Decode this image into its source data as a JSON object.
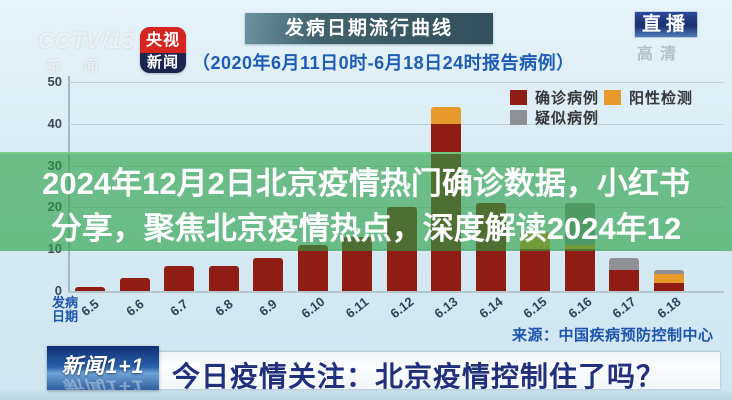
{
  "header": {
    "channel_watermark_line1": "CCTV/13",
    "channel_watermark_line2": "新 闻",
    "app_logo": {
      "line1": "央视",
      "line2": "新闻"
    },
    "title": "发病日期流行曲线",
    "subtitle": "（2020年6月11日0时-6月18日24时报告病例）",
    "live_badge": "直播",
    "hd_watermark": "高清"
  },
  "legend": {
    "items": [
      {
        "label": "确诊病例",
        "color": "#8f1d13"
      },
      {
        "label": "阳性检测",
        "color": "#e79a2c"
      },
      {
        "label": "疑似病例",
        "color": "#8e9096"
      }
    ]
  },
  "overlay": {
    "line1": "2024年12月2日北京疫情热门确诊数据，小红书",
    "line2": "分享，聚焦北京疫情热点，深度解读2024年12",
    "band_color": "#28a046"
  },
  "axis": {
    "x_title_line1": "发病",
    "x_title_line2": "日期",
    "source": "来源：中国疾病预防控制中心"
  },
  "ticker": {
    "logo": "新闻1+1",
    "text": "今日疫情关注：北京疫情控制住了吗？"
  },
  "chart_data": {
    "type": "bar",
    "stacked": true,
    "title": "发病日期流行曲线",
    "subtitle": "（2020年6月11日0时-6月18日24时报告病例）",
    "categories": [
      "6.5",
      "6.6",
      "6.7",
      "6.8",
      "6.9",
      "6.10",
      "6.11",
      "6.12",
      "6.13",
      "6.14",
      "6.15",
      "6.16",
      "6.17",
      "6.18"
    ],
    "series": [
      {
        "name": "确诊病例",
        "color": "#8f1d13",
        "values": [
          1,
          3,
          6,
          6,
          8,
          11,
          13,
          20,
          40,
          21,
          10,
          10,
          5,
          2
        ]
      },
      {
        "name": "阳性检测",
        "color": "#e79a2c",
        "values": [
          0,
          0,
          0,
          0,
          0,
          0,
          0,
          0,
          4,
          0,
          4,
          1,
          0,
          2
        ]
      },
      {
        "name": "疑似病例",
        "color": "#8e9096",
        "values": [
          0,
          0,
          0,
          0,
          0,
          0,
          0,
          0,
          0,
          0,
          0,
          10,
          3,
          1
        ]
      }
    ],
    "yticks": [
      0,
      10,
      20,
      30,
      40,
      50
    ],
    "ylim": [
      0,
      50
    ],
    "xlabel": "发病日期",
    "ylabel": "",
    "grid": true,
    "legend_position": "top-right",
    "source": "来源：中国疾病预防控制中心"
  }
}
